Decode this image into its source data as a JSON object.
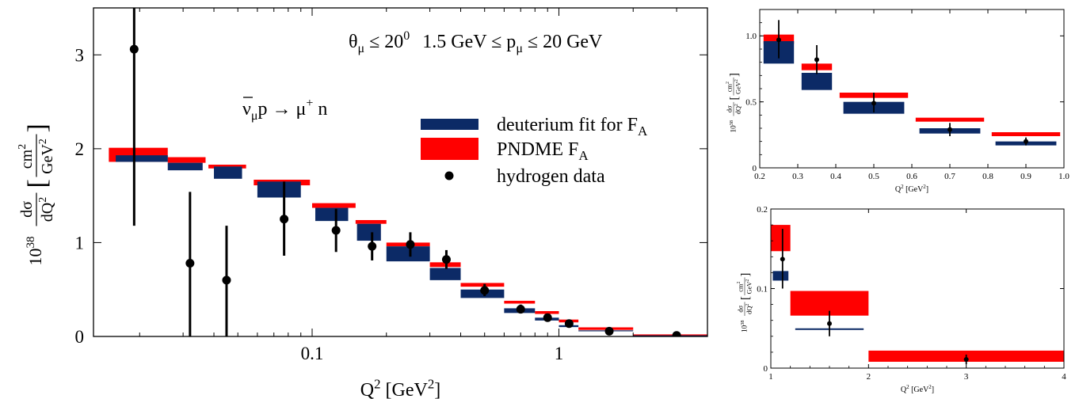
{
  "chart_data": [
    {
      "type": "bar",
      "x_scale": "log",
      "xlim": [
        0.013,
        4.0
      ],
      "ylim": [
        0,
        3.5
      ],
      "xlabel": {
        "base": "Q",
        "sup": "2",
        "unit_open": " [GeV",
        "unit_sup": "2",
        "unit_close": "]"
      },
      "ylabel": {
        "factor": "10",
        "factor_sup": "38",
        "num": "dσ",
        "den": "dQ",
        "den_sup": "2",
        "unit_num": "cm",
        "unit_num_sup": "2",
        "unit_den": "GeV",
        "unit_den_sup": "2"
      },
      "x_ticks": [
        {
          "value": 0.1,
          "label": "0.1"
        },
        {
          "value": 1,
          "label": "1"
        }
      ],
      "x_minor_ticks": [
        0.02,
        0.03,
        0.04,
        0.05,
        0.06,
        0.07,
        0.08,
        0.09,
        0.2,
        0.3,
        0.4,
        0.5,
        0.6,
        0.7,
        0.8,
        0.9,
        2,
        3,
        4
      ],
      "y_ticks": [
        {
          "value": 0,
          "label": "0"
        },
        {
          "value": 1,
          "label": "1"
        },
        {
          "value": 2,
          "label": "2"
        },
        {
          "value": 3,
          "label": "3"
        }
      ],
      "annotations": {
        "cuts": {
          "theta": "θ",
          "theta_sub": "μ",
          "theta_rel": " ≤ 20",
          "theta_sup": "0",
          "p_pre": "1.5 GeV ≤ p",
          "p_sub": "μ",
          "p_post": " ≤ 20 GeV"
        },
        "reaction": {
          "nu": "ν",
          "nu_sub": "μ",
          "mid": "p → μ",
          "mu_sup": "+",
          "tail": " n"
        }
      },
      "legend": {
        "position": "center-right",
        "entries": [
          {
            "label": "deuterium fit for F",
            "sub": "A",
            "kind": "blue"
          },
          {
            "label": "PNDME F",
            "sub": "A",
            "kind": "red"
          },
          {
            "label": "hydrogen data",
            "kind": "point"
          }
        ]
      },
      "series": [
        {
          "name": "deuterium fit for F_A",
          "bins": [
            {
              "x0": 0.016,
              "x1": 0.026,
              "y0": 1.86,
              "y1": 1.93
            },
            {
              "x0": 0.026,
              "x1": 0.036,
              "y0": 1.77,
              "y1": 1.85
            },
            {
              "x0": 0.04,
              "x1": 0.052,
              "y0": 1.68,
              "y1": 1.81
            },
            {
              "x0": 0.06,
              "x1": 0.09,
              "y0": 1.48,
              "y1": 1.65
            },
            {
              "x0": 0.103,
              "x1": 0.14,
              "y0": 1.23,
              "y1": 1.37
            },
            {
              "x0": 0.152,
              "x1": 0.19,
              "y0": 1.02,
              "y1": 1.2
            },
            {
              "x0": 0.2,
              "x1": 0.3,
              "y0": 0.8,
              "y1": 0.96
            },
            {
              "x0": 0.3,
              "x1": 0.4,
              "y0": 0.6,
              "y1": 0.73
            },
            {
              "x0": 0.4,
              "x1": 0.6,
              "y0": 0.41,
              "y1": 0.5
            },
            {
              "x0": 0.6,
              "x1": 0.8,
              "y0": 0.25,
              "y1": 0.3
            },
            {
              "x0": 0.8,
              "x1": 1.0,
              "y0": 0.17,
              "y1": 0.2
            },
            {
              "x0": 1.0,
              "x1": 1.2,
              "y0": 0.1,
              "y1": 0.12
            },
            {
              "x0": 1.2,
              "x1": 2.0,
              "y0": 0.06,
              "y1": 0.065
            },
            {
              "x0": 2.0,
              "x1": 4.0,
              "y0": 0.01,
              "y1": 0.012
            }
          ]
        },
        {
          "name": "PNDME F_A",
          "bins": [
            {
              "x0": 0.015,
              "x1": 0.026,
              "y0": 1.86,
              "y1": 2.01
            },
            {
              "x0": 0.026,
              "x1": 0.037,
              "y0": 1.85,
              "y1": 1.91
            },
            {
              "x0": 0.038,
              "x1": 0.054,
              "y0": 1.79,
              "y1": 1.83
            },
            {
              "x0": 0.058,
              "x1": 0.098,
              "y0": 1.61,
              "y1": 1.67
            },
            {
              "x0": 0.1,
              "x1": 0.15,
              "y0": 1.37,
              "y1": 1.42
            },
            {
              "x0": 0.15,
              "x1": 0.2,
              "y0": 1.2,
              "y1": 1.24
            },
            {
              "x0": 0.2,
              "x1": 0.3,
              "y0": 0.96,
              "y1": 1.0
            },
            {
              "x0": 0.3,
              "x1": 0.4,
              "y0": 0.74,
              "y1": 0.79
            },
            {
              "x0": 0.4,
              "x1": 0.6,
              "y0": 0.53,
              "y1": 0.57
            },
            {
              "x0": 0.6,
              "x1": 0.8,
              "y0": 0.35,
              "y1": 0.38
            },
            {
              "x0": 0.8,
              "x1": 1.0,
              "y0": 0.24,
              "y1": 0.27
            },
            {
              "x0": 1.0,
              "x1": 1.2,
              "y0": 0.15,
              "y1": 0.18
            },
            {
              "x0": 1.2,
              "x1": 2.0,
              "y0": 0.07,
              "y1": 0.097
            },
            {
              "x0": 2.0,
              "x1": 4.0,
              "y0": 0.008,
              "y1": 0.022
            }
          ]
        },
        {
          "name": "hydrogen data",
          "points": [
            {
              "x": 0.019,
              "y": 3.06,
              "lo": 1.18,
              "hi": 3.5
            },
            {
              "x": 0.032,
              "y": 0.78,
              "lo": 0.0,
              "hi": 1.54
            },
            {
              "x": 0.045,
              "y": 0.6,
              "lo": 0.0,
              "hi": 1.18
            },
            {
              "x": 0.077,
              "y": 1.25,
              "lo": 0.86,
              "hi": 1.65
            },
            {
              "x": 0.125,
              "y": 1.13,
              "lo": 0.9,
              "hi": 1.36
            },
            {
              "x": 0.175,
              "y": 0.96,
              "lo": 0.81,
              "hi": 1.11
            },
            {
              "x": 0.25,
              "y": 0.98,
              "lo": 0.85,
              "hi": 1.11
            },
            {
              "x": 0.35,
              "y": 0.82,
              "lo": 0.72,
              "hi": 0.92
            },
            {
              "x": 0.5,
              "y": 0.49,
              "lo": 0.43,
              "hi": 0.56
            },
            {
              "x": 0.7,
              "y": 0.29,
              "lo": 0.25,
              "hi": 0.34
            },
            {
              "x": 0.9,
              "y": 0.2,
              "lo": 0.17,
              "hi": 0.23
            },
            {
              "x": 1.1,
              "y": 0.137,
              "lo": 0.11,
              "hi": 0.16
            },
            {
              "x": 1.6,
              "y": 0.056,
              "lo": 0.045,
              "hi": 0.067
            },
            {
              "x": 3.0,
              "y": 0.011,
              "lo": 0.008,
              "hi": 0.014
            }
          ]
        }
      ]
    },
    {
      "type": "bar",
      "xlim": [
        0.2,
        1.0
      ],
      "ylim": [
        0,
        1.2
      ],
      "xlabel": {
        "base": "Q",
        "sup": "2",
        "unit_open": " [GeV",
        "unit_sup": "2",
        "unit_close": "]"
      },
      "ylabel": {
        "factor": "10",
        "factor_sup": "38",
        "num": "dσ",
        "den": "dQ",
        "den_sup": "2",
        "unit_num": "cm",
        "unit_num_sup": "2",
        "unit_den": "GeV",
        "unit_den_sup": "2"
      },
      "x_ticks": [
        {
          "value": 0.2,
          "label": "0.2"
        },
        {
          "value": 0.3,
          "label": "0.3"
        },
        {
          "value": 0.4,
          "label": "0.4"
        },
        {
          "value": 0.5,
          "label": "0.5"
        },
        {
          "value": 0.6,
          "label": "0.6"
        },
        {
          "value": 0.7,
          "label": "0.7"
        },
        {
          "value": 0.8,
          "label": "0.8"
        },
        {
          "value": 0.9,
          "label": "0.9"
        },
        {
          "value": 1.0,
          "label": "1.0"
        }
      ],
      "y_ticks": [
        {
          "value": 0,
          "label": "0"
        },
        {
          "value": 0.5,
          "label": "0.5"
        },
        {
          "value": 1.0,
          "label": "1.0"
        }
      ],
      "series": [
        {
          "name": "deuterium fit for F_A",
          "bins": [
            {
              "x0": 0.21,
              "x1": 0.29,
              "y0": 0.79,
              "y1": 0.96
            },
            {
              "x0": 0.31,
              "x1": 0.39,
              "y0": 0.59,
              "y1": 0.72
            },
            {
              "x0": 0.42,
              "x1": 0.58,
              "y0": 0.41,
              "y1": 0.5
            },
            {
              "x0": 0.62,
              "x1": 0.78,
              "y0": 0.26,
              "y1": 0.3
            },
            {
              "x0": 0.82,
              "x1": 0.98,
              "y0": 0.17,
              "y1": 0.2
            }
          ]
        },
        {
          "name": "PNDME F_A",
          "bins": [
            {
              "x0": 0.21,
              "x1": 0.29,
              "y0": 0.94,
              "y1": 1.01
            },
            {
              "x0": 0.31,
              "x1": 0.39,
              "y0": 0.74,
              "y1": 0.79
            },
            {
              "x0": 0.41,
              "x1": 0.59,
              "y0": 0.53,
              "y1": 0.57
            },
            {
              "x0": 0.61,
              "x1": 0.79,
              "y0": 0.35,
              "y1": 0.38
            },
            {
              "x0": 0.81,
              "x1": 0.99,
              "y0": 0.24,
              "y1": 0.27
            }
          ]
        },
        {
          "name": "hydrogen data",
          "points": [
            {
              "x": 0.25,
              "y": 0.97,
              "lo": 0.83,
              "hi": 1.12
            },
            {
              "x": 0.35,
              "y": 0.82,
              "lo": 0.71,
              "hi": 0.93
            },
            {
              "x": 0.5,
              "y": 0.49,
              "lo": 0.42,
              "hi": 0.57
            },
            {
              "x": 0.7,
              "y": 0.29,
              "lo": 0.24,
              "hi": 0.34
            },
            {
              "x": 0.9,
              "y": 0.2,
              "lo": 0.17,
              "hi": 0.23
            }
          ]
        }
      ]
    },
    {
      "type": "bar",
      "xlim": [
        1,
        4
      ],
      "ylim": [
        0,
        0.2
      ],
      "xlabel": {
        "base": "Q",
        "sup": "2",
        "unit_open": " [GeV",
        "unit_sup": "2",
        "unit_close": "]"
      },
      "ylabel": {
        "factor": "10",
        "factor_sup": "38",
        "num": "dσ",
        "den": "dQ",
        "den_sup": "2",
        "unit_num": "cm",
        "unit_num_sup": "2",
        "unit_den": "GeV",
        "unit_den_sup": "2"
      },
      "x_ticks": [
        {
          "value": 1,
          "label": "1"
        },
        {
          "value": 2,
          "label": "2"
        },
        {
          "value": 3,
          "label": "3"
        },
        {
          "value": 4,
          "label": "4"
        }
      ],
      "y_ticks": [
        {
          "value": 0,
          "label": "0"
        },
        {
          "value": 0.1,
          "label": "0.1"
        },
        {
          "value": 0.2,
          "label": "0.2"
        }
      ],
      "series": [
        {
          "name": "deuterium fit for F_A",
          "bins": [
            {
              "x0": 1.02,
              "x1": 1.18,
              "y0": 0.11,
              "y1": 0.122
            },
            {
              "x0": 1.25,
              "x1": 1.95,
              "y0": 0.048,
              "y1": 0.05
            }
          ]
        },
        {
          "name": "PNDME F_A",
          "bins": [
            {
              "x0": 1.0,
              "x1": 1.2,
              "y0": 0.147,
              "y1": 0.18
            },
            {
              "x0": 1.2,
              "x1": 2.0,
              "y0": 0.066,
              "y1": 0.097
            },
            {
              "x0": 2.0,
              "x1": 4.0,
              "y0": 0.008,
              "y1": 0.022
            }
          ]
        },
        {
          "name": "hydrogen data",
          "points": [
            {
              "x": 1.12,
              "y": 0.137,
              "lo": 0.1,
              "hi": 0.175
            },
            {
              "x": 1.6,
              "y": 0.056,
              "lo": 0.04,
              "hi": 0.072
            },
            {
              "x": 3.0,
              "y": 0.011,
              "lo": 0.005,
              "hi": 0.017
            }
          ]
        }
      ]
    }
  ],
  "colors": {
    "deuterium": "#0c2a66",
    "pndme": "#ff0000",
    "data": "#000000",
    "axis": "#000000"
  }
}
